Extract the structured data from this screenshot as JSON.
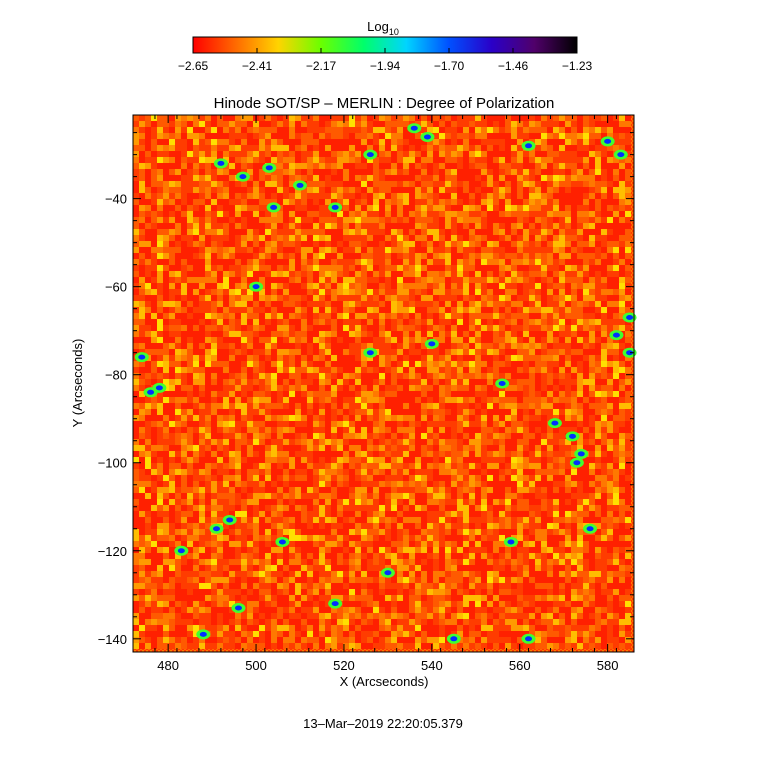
{
  "chart_data": {
    "type": "heatmap",
    "title": "Hinode SOT/SP – MERLIN : Degree of Polarization",
    "xlabel": "X (Arcseconds)",
    "ylabel": "Y (Arcseconds)",
    "xlim": [
      472,
      586
    ],
    "ylim": [
      -143,
      -21
    ],
    "x_ticks": [
      480,
      500,
      520,
      540,
      560,
      580
    ],
    "x_tick_labels": [
      "480",
      "500",
      "520",
      "540",
      "560",
      "580"
    ],
    "y_ticks": [
      -40,
      -60,
      -80,
      -100,
      -120,
      -140
    ],
    "y_tick_labels": [
      "−40",
      "−60",
      "−80",
      "−100",
      "−120",
      "−140"
    ],
    "colorbar": {
      "label_base": "Log",
      "label_sub": "10",
      "range": [
        -2.65,
        -1.23
      ],
      "tick_labels": [
        "−2.65",
        "−2.41",
        "−2.17",
        "−1.94",
        "−1.70",
        "−1.46",
        "−1.23"
      ],
      "colormap": [
        "#ff0000",
        "#ff6a00",
        "#ffd400",
        "#6aff00",
        "#00ff6a",
        "#00d4ff",
        "#0050ff",
        "#2a00c8",
        "#50006a",
        "#000000"
      ]
    },
    "grid": false,
    "legend": "colorbar-top"
  },
  "footer": {
    "timestamp": "13–Mar–2019 22:20:05.379"
  }
}
